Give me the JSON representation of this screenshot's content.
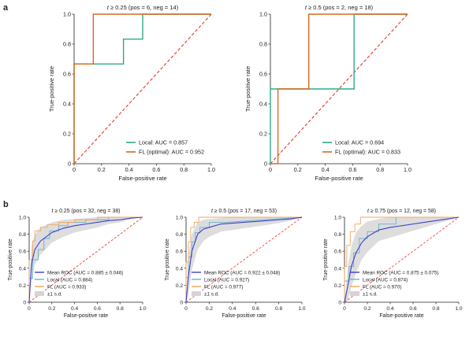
{
  "panel_labels": {
    "a": "a",
    "b": "b"
  },
  "colors": {
    "local": "#2fa98c",
    "fl": "#d9681c",
    "mean": "#3d3fc9",
    "fl_light": "#f2a65c",
    "local_light": "#6fb0c9",
    "band": "#d4d4d4",
    "diag": "#e8362a"
  },
  "chart_data": [
    {
      "type": "line",
      "row": "a",
      "variant": "single",
      "title": "t ≥ 0.25 (pos = 6, neg = 14)",
      "xlabel": "False-positive rate",
      "ylabel": "True-positive rate",
      "xlim": [
        0,
        1
      ],
      "ylim": [
        0,
        1
      ],
      "xticks": [
        "0",
        "0.2",
        "0.4",
        "0.6",
        "0.8",
        "1.0"
      ],
      "yticks": [
        "0",
        "0.2",
        "0.4",
        "0.6",
        "0.8",
        "1.0"
      ],
      "legend": [
        "Local: AUC = 0.857",
        "FL (optimal): AUC = 0.952"
      ],
      "series": [
        {
          "name": "Local",
          "x": [
            0,
            0,
            0.14,
            0.14,
            0.36,
            0.36,
            0.5,
            0.5,
            1.0
          ],
          "y": [
            0,
            0.667,
            0.667,
            0.667,
            0.667,
            0.833,
            0.833,
            1.0,
            1.0
          ]
        },
        {
          "name": "FL (optimal)",
          "x": [
            0,
            0,
            0.14,
            0.14,
            1.0
          ],
          "y": [
            0,
            0.667,
            0.667,
            1.0,
            1.0
          ]
        }
      ]
    },
    {
      "type": "line",
      "row": "a",
      "variant": "single",
      "title": "t ≥ 0.5 (pos = 2, neg = 18)",
      "xlabel": "False-positive rate",
      "ylabel": "True-positive rate",
      "xlim": [
        0,
        1
      ],
      "ylim": [
        0,
        1
      ],
      "xticks": [
        "0",
        "0.2",
        "0.4",
        "0.6",
        "0.8",
        "1.0"
      ],
      "yticks": [
        "0",
        "0.2",
        "0.4",
        "0.6",
        "0.8",
        "1.0"
      ],
      "legend": [
        "Local: AUC = 0.694",
        "FL (optimal): AUC = 0.833"
      ],
      "series": [
        {
          "name": "Local",
          "x": [
            0,
            0,
            0.61,
            0.61,
            1.0
          ],
          "y": [
            0,
            0.5,
            0.5,
            1.0,
            1.0
          ]
        },
        {
          "name": "FL (optimal)",
          "x": [
            0,
            0.055,
            0.055,
            0.28,
            0.28,
            1.0
          ],
          "y": [
            0,
            0,
            0.5,
            0.5,
            1.0,
            1.0
          ]
        }
      ]
    },
    {
      "type": "line",
      "row": "b",
      "variant": "multi",
      "title": "t ≥ 0.25 (pos = 32, neg = 38)",
      "xlabel": "False-positive rate",
      "ylabel": "True-positive rate",
      "xlim": [
        0,
        1
      ],
      "ylim": [
        0,
        1
      ],
      "xticks": [
        "0",
        "0.2",
        "0.4",
        "0.6",
        "0.8",
        "1.0"
      ],
      "yticks": [
        "0",
        "0.2",
        "0.4",
        "0.6",
        "0.8",
        "1.0"
      ],
      "legend": [
        "Mean ROC (AUC = 0.885 ± 0.046)",
        "Local (AUC = 0.884)",
        "FL (AUC = 0.933)",
        "±1 s.d."
      ],
      "series": [
        {
          "name": "Mean ROC",
          "x": [
            0,
            0.02,
            0.05,
            0.1,
            0.2,
            0.3,
            0.4,
            0.5,
            0.6,
            0.7,
            0.8,
            0.9,
            1.0
          ],
          "y": [
            0,
            0.45,
            0.62,
            0.72,
            0.82,
            0.87,
            0.9,
            0.92,
            0.94,
            0.96,
            0.97,
            0.99,
            1.0
          ]
        },
        {
          "name": "Local",
          "x": [
            0,
            0,
            0.03,
            0.03,
            0.08,
            0.08,
            0.13,
            0.13,
            0.18,
            0.18,
            0.26,
            0.26,
            0.34,
            0.34,
            0.5,
            0.5,
            0.7,
            0.7,
            1.0
          ],
          "y": [
            0,
            0.28,
            0.28,
            0.5,
            0.5,
            0.62,
            0.62,
            0.75,
            0.75,
            0.84,
            0.84,
            0.9,
            0.9,
            0.94,
            0.94,
            0.97,
            0.97,
            1.0,
            1.0
          ]
        },
        {
          "name": "FL",
          "x": [
            0,
            0,
            0.03,
            0.03,
            0.05,
            0.05,
            0.1,
            0.1,
            0.16,
            0.16,
            0.26,
            0.26,
            0.4,
            0.4,
            0.6,
            0.6,
            1.0
          ],
          "y": [
            0,
            0.5,
            0.5,
            0.72,
            0.72,
            0.84,
            0.84,
            0.88,
            0.88,
            0.91,
            0.91,
            0.94,
            0.94,
            0.97,
            0.97,
            1.0,
            1.0
          ]
        }
      ],
      "band_upper": [
        0,
        0.65,
        0.8,
        0.88,
        0.94,
        0.97,
        0.98,
        0.99,
        1.0,
        1.0,
        1.0,
        1.0,
        1.0
      ],
      "band_lower": [
        0,
        0.25,
        0.44,
        0.56,
        0.7,
        0.77,
        0.82,
        0.85,
        0.88,
        0.92,
        0.94,
        0.98,
        1.0
      ]
    },
    {
      "type": "line",
      "row": "b",
      "variant": "multi",
      "title": "t ≥ 0.5 (pos = 17, neg = 53)",
      "xlabel": "False-positive rate",
      "ylabel": "True-positive rate",
      "xlim": [
        0,
        1
      ],
      "ylim": [
        0,
        1
      ],
      "xticks": [
        "0",
        "0.2",
        "0.4",
        "0.6",
        "0.8",
        "1.0"
      ],
      "yticks": [
        "0",
        "0.2",
        "0.4",
        "0.6",
        "0.8",
        "1.0"
      ],
      "legend": [
        "Mean ROC (AUC = 0.922 ± 0.048)",
        "Local (AUC = 0.927)",
        "FL (AUC = 0.977)",
        "±1 s.d."
      ],
      "series": [
        {
          "name": "Mean ROC",
          "x": [
            0,
            0.02,
            0.05,
            0.1,
            0.15,
            0.2,
            0.3,
            0.4,
            0.5,
            0.6,
            0.7,
            0.8,
            0.9,
            1.0
          ],
          "y": [
            0,
            0.3,
            0.6,
            0.8,
            0.86,
            0.88,
            0.92,
            0.93,
            0.94,
            0.95,
            0.96,
            0.97,
            0.98,
            1.0
          ]
        },
        {
          "name": "Local",
          "x": [
            0,
            0,
            0.02,
            0.02,
            0.05,
            0.05,
            0.08,
            0.08,
            0.12,
            0.12,
            0.2,
            0.2,
            0.35,
            0.35,
            1.0
          ],
          "y": [
            0,
            0.29,
            0.29,
            0.53,
            0.53,
            0.71,
            0.71,
            0.82,
            0.82,
            0.88,
            0.88,
            0.94,
            0.94,
            0.94,
            1.0
          ]
        },
        {
          "name": "FL",
          "x": [
            0,
            0,
            0.02,
            0.02,
            0.04,
            0.04,
            0.07,
            0.07,
            0.11,
            0.11,
            1.0
          ],
          "y": [
            0,
            0.47,
            0.47,
            0.71,
            0.71,
            0.88,
            0.88,
            0.94,
            0.94,
            1.0,
            1.0
          ]
        }
      ],
      "band_upper": [
        0,
        0.55,
        0.8,
        0.94,
        0.97,
        0.98,
        0.99,
        1.0,
        1.0,
        1.0,
        1.0,
        1.0,
        1.0,
        1.0
      ],
      "band_lower": [
        0,
        0.08,
        0.38,
        0.62,
        0.72,
        0.77,
        0.83,
        0.85,
        0.87,
        0.89,
        0.91,
        0.93,
        0.96,
        1.0
      ]
    },
    {
      "type": "line",
      "row": "b",
      "variant": "multi",
      "title": "t ≥ 0.75 (pos = 12, neg = 58)",
      "xlabel": "False-positive rate",
      "ylabel": "True-positive rate",
      "xlim": [
        0,
        1
      ],
      "ylim": [
        0,
        1
      ],
      "xticks": [
        "0",
        "0.2",
        "0.4",
        "0.6",
        "0.8",
        "1.0"
      ],
      "yticks": [
        "0",
        "0.2",
        "0.4",
        "0.6",
        "0.8",
        "1.0"
      ],
      "legend": [
        "Mean ROC (AUC = 0.875 ± 0.075)",
        "Local (AUC = 0.874)",
        "FL (AUC = 0.970)",
        "±1 s.d."
      ],
      "series": [
        {
          "name": "Mean ROC",
          "x": [
            0,
            0.03,
            0.06,
            0.1,
            0.15,
            0.2,
            0.3,
            0.4,
            0.5,
            0.6,
            0.7,
            0.8,
            0.9,
            1.0
          ],
          "y": [
            0,
            0.2,
            0.42,
            0.58,
            0.7,
            0.77,
            0.85,
            0.88,
            0.9,
            0.92,
            0.94,
            0.96,
            0.98,
            1.0
          ]
        },
        {
          "name": "Local",
          "x": [
            0,
            0,
            0.04,
            0.04,
            0.08,
            0.08,
            0.13,
            0.13,
            0.2,
            0.2,
            0.3,
            0.3,
            0.45,
            0.45,
            1.0
          ],
          "y": [
            0,
            0.25,
            0.25,
            0.42,
            0.42,
            0.58,
            0.58,
            0.75,
            0.75,
            0.83,
            0.83,
            0.92,
            0.92,
            1.0,
            1.0
          ]
        },
        {
          "name": "FL",
          "x": [
            0,
            0,
            0.02,
            0.02,
            0.05,
            0.05,
            0.09,
            0.09,
            0.14,
            0.14,
            1.0
          ],
          "y": [
            0,
            0.42,
            0.42,
            0.67,
            0.67,
            0.83,
            0.83,
            0.92,
            0.92,
            1.0,
            1.0
          ]
        }
      ],
      "band_upper": [
        0,
        0.42,
        0.66,
        0.82,
        0.9,
        0.95,
        0.98,
        1.0,
        1.0,
        1.0,
        1.0,
        1.0,
        1.0,
        1.0
      ],
      "band_lower": [
        0,
        0.02,
        0.18,
        0.34,
        0.5,
        0.59,
        0.72,
        0.76,
        0.8,
        0.84,
        0.88,
        0.92,
        0.96,
        1.0
      ]
    }
  ]
}
